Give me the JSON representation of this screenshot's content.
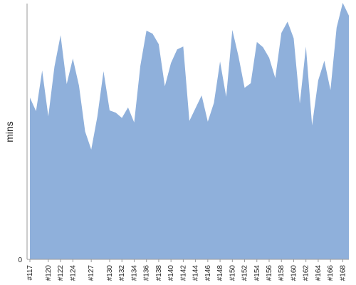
{
  "chart_data": {
    "type": "area",
    "title": "",
    "xlabel": "",
    "ylabel": "mins",
    "ylim": [
      0,
      340
    ],
    "y_ticks": [
      0
    ],
    "grid": false,
    "legend": "none",
    "color": "#8fb0db",
    "categories": [
      "#117",
      "#118",
      "#119",
      "#120",
      "#121",
      "#122",
      "#123",
      "#124",
      "#125",
      "#126",
      "#127",
      "#128",
      "#129",
      "#130",
      "#131",
      "#132",
      "#133",
      "#134",
      "#135",
      "#136",
      "#137",
      "#138",
      "#139",
      "#140",
      "#141",
      "#142",
      "#143",
      "#144",
      "#145",
      "#146",
      "#147",
      "#148",
      "#149",
      "#150",
      "#151",
      "#152",
      "#153",
      "#154",
      "#155",
      "#156",
      "#157",
      "#158",
      "#159",
      "#160",
      "#161",
      "#162",
      "#163",
      "#164",
      "#165",
      "#166",
      "#167",
      "#168",
      "#169"
    ],
    "x_tick_labels": [
      "#117",
      "#120",
      "#122",
      "#124",
      "#127",
      "#130",
      "#132",
      "#134",
      "#136",
      "#138",
      "#140",
      "#142",
      "#144",
      "#146",
      "#148",
      "#150",
      "#152",
      "#154",
      "#156",
      "#158",
      "#160",
      "#162",
      "#164",
      "#166",
      "#168"
    ],
    "values": [
      215,
      197,
      251,
      190,
      256,
      298,
      233,
      267,
      231,
      170,
      146,
      190,
      250,
      198,
      195,
      188,
      202,
      182,
      257,
      304,
      300,
      286,
      230,
      261,
      279,
      283,
      184,
      201,
      218,
      183,
      208,
      263,
      216,
      305,
      270,
      228,
      234,
      289,
      282,
      268,
      241,
      301,
      316,
      294,
      207,
      283,
      178,
      238,
      264,
      225,
      308,
      341,
      324
    ]
  }
}
